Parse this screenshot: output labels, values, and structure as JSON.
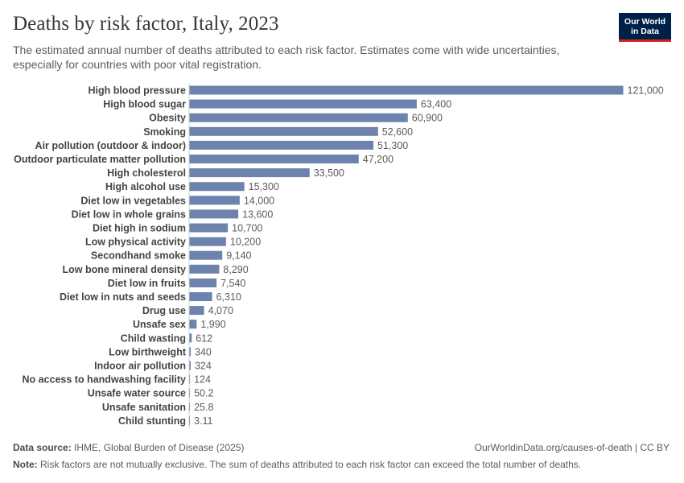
{
  "header": {
    "title": "Deaths by risk factor, Italy, 2023",
    "subtitle": "The estimated annual number of deaths attributed to each risk factor. Estimates come with wide uncertainties, especially for countries with poor vital registration."
  },
  "logo": {
    "line1": "Our World",
    "line2": "in Data",
    "bg": "#002147",
    "accent": "#ce261e"
  },
  "footer": {
    "source_label": "Data source:",
    "source_text": "IHME, Global Burden of Disease (2025)",
    "url_text": "OurWorldinData.org/causes-of-death | CC BY",
    "note_label": "Note:",
    "note_text": "Risk factors are not mutually exclusive. The sum of deaths attributed to each risk factor can exceed the total number of deaths."
  },
  "chart_data": {
    "type": "bar",
    "orientation": "horizontal",
    "bar_color": "#6d83ad",
    "xlim": [
      0,
      121000
    ],
    "categories": [
      "High blood pressure",
      "High blood sugar",
      "Obesity",
      "Smoking",
      "Air pollution (outdoor & indoor)",
      "Outdoor particulate matter pollution",
      "High cholesterol",
      "High alcohol use",
      "Diet low in vegetables",
      "Diet low in whole grains",
      "Diet high in sodium",
      "Low physical activity",
      "Secondhand smoke",
      "Low bone mineral density",
      "Diet low in fruits",
      "Diet low in nuts and seeds",
      "Drug use",
      "Unsafe sex",
      "Child wasting",
      "Low birthweight",
      "Indoor air pollution",
      "No access to handwashing facility",
      "Unsafe water source",
      "Unsafe sanitation",
      "Child stunting"
    ],
    "values": [
      121000,
      63400,
      60900,
      52600,
      51300,
      47200,
      33500,
      15300,
      14000,
      13600,
      10700,
      10200,
      9140,
      8290,
      7540,
      6310,
      4070,
      1990,
      612,
      340,
      324,
      124,
      50.2,
      25.8,
      3.11
    ],
    "value_labels": [
      "121,000",
      "63,400",
      "60,900",
      "52,600",
      "51,300",
      "47,200",
      "33,500",
      "15,300",
      "14,000",
      "13,600",
      "10,700",
      "10,200",
      "9,140",
      "8,290",
      "7,540",
      "6,310",
      "4,070",
      "1,990",
      "612",
      "340",
      "324",
      "124",
      "50.2",
      "25.8",
      "3.11"
    ]
  }
}
